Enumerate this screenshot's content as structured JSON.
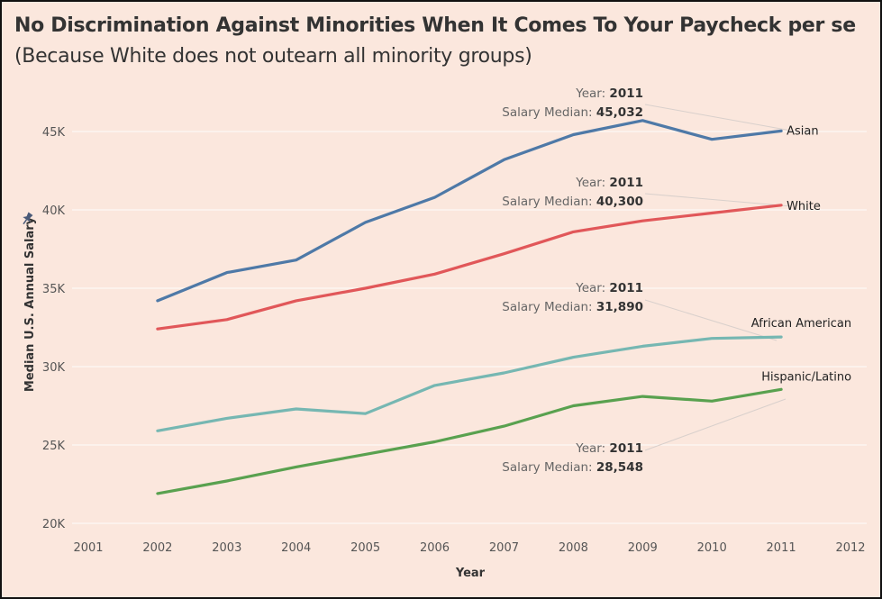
{
  "title": "No Discrimination Against Minorities When It Comes To Your Paycheck per se",
  "subtitle": "(Because White does not outearn all minority groups)",
  "colors": {
    "background": "#fbe7dd",
    "Asian": "#4e79a7",
    "White": "#e15759",
    "African American": "#76b7b2",
    "Hispanic/Latino": "#59a14f"
  },
  "icons": {
    "pin": "pin-icon"
  },
  "chart_data": {
    "type": "line",
    "title": "No Discrimination Against Minorities When It Comes To Your Paycheck per se",
    "subtitle": "(Because White does not outearn all minority groups)",
    "xlabel": "Year",
    "ylabel": "Median U.S. Annual Salary",
    "xlim": [
      2001,
      2012
    ],
    "ylim": [
      20000,
      47000
    ],
    "x_ticks": [
      "2001",
      "2002",
      "2003",
      "2004",
      "2005",
      "2006",
      "2007",
      "2008",
      "2009",
      "2010",
      "2011",
      "2012"
    ],
    "y_ticks": [
      {
        "value": 20000,
        "label": "20K"
      },
      {
        "value": 25000,
        "label": "25K"
      },
      {
        "value": 30000,
        "label": "30K"
      },
      {
        "value": 35000,
        "label": "35K"
      },
      {
        "value": 40000,
        "label": "40K"
      },
      {
        "value": 45000,
        "label": "45K"
      }
    ],
    "grid": true,
    "legend": "none (series labeled at line ends)",
    "x": [
      2002,
      2003,
      2004,
      2005,
      2006,
      2007,
      2008,
      2009,
      2010,
      2011
    ],
    "series": [
      {
        "name": "Asian",
        "values": [
          34200,
          36000,
          36800,
          39200,
          40800,
          43200,
          44800,
          45700,
          44500,
          45032
        ]
      },
      {
        "name": "White",
        "values": [
          32400,
          33000,
          34200,
          35000,
          35900,
          37200,
          38600,
          39300,
          39800,
          40300
        ]
      },
      {
        "name": "African American",
        "values": [
          25900,
          26700,
          27300,
          27000,
          28800,
          29600,
          30600,
          31300,
          31800,
          31890
        ]
      },
      {
        "name": "Hispanic/Latino",
        "values": [
          21900,
          22700,
          23600,
          24400,
          25200,
          26200,
          27500,
          28100,
          27800,
          28548
        ]
      }
    ],
    "annotations": [
      {
        "series": "Asian",
        "year_label": "Year:",
        "year": "2011",
        "median_label": "Salary Median:",
        "median": "45,032"
      },
      {
        "series": "White",
        "year_label": "Year:",
        "year": "2011",
        "median_label": "Salary Median:",
        "median": "40,300"
      },
      {
        "series": "African American",
        "year_label": "Year:",
        "year": "2011",
        "median_label": "Salary Median:",
        "median": "31,890"
      },
      {
        "series": "Hispanic/Latino",
        "year_label": "Year:",
        "year": "2011",
        "median_label": "Salary Median:",
        "median": "28,548"
      }
    ]
  }
}
